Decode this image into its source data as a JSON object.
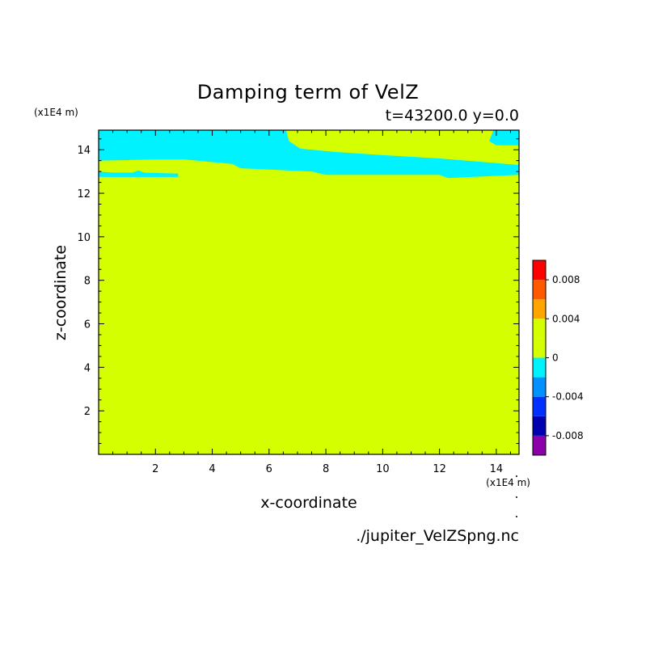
{
  "chart_data": {
    "type": "heatmap",
    "title": "Damping term of VelZ",
    "subtitle": "t=43200.0 y=0.0",
    "xlabel": "x-coordinate",
    "ylabel": "z-coordinate",
    "x_unit": "(x1E4 m)",
    "y_unit": "(x1E4 m)",
    "xlim": [
      0,
      14.8
    ],
    "ylim": [
      0,
      14.9
    ],
    "x_ticks": [
      "2",
      "4",
      "6",
      "8",
      "10",
      "12",
      "14"
    ],
    "y_ticks": [
      "2",
      "4",
      "6",
      "8",
      "10",
      "12",
      "14"
    ],
    "background_level": "0 to 0.002",
    "regions": [
      {
        "name": "band-left",
        "color": "#00f2ff",
        "level": "-0.002 to 0",
        "points": [
          [
            0,
            14.9
          ],
          [
            6.6,
            14.9
          ],
          [
            6.7,
            14.4
          ],
          [
            7.1,
            14.05
          ],
          [
            8.3,
            13.9
          ],
          [
            10.0,
            13.75
          ],
          [
            12.0,
            13.6
          ],
          [
            13.4,
            13.45
          ],
          [
            14.8,
            13.3
          ],
          [
            14.8,
            12.85
          ],
          [
            12.3,
            12.7
          ],
          [
            12.0,
            12.85
          ],
          [
            8.0,
            12.85
          ],
          [
            7.5,
            13.0
          ],
          [
            5.0,
            13.15
          ],
          [
            4.7,
            13.35
          ],
          [
            3.0,
            13.55
          ],
          [
            2.0,
            13.55
          ],
          [
            0,
            13.5
          ]
        ]
      },
      {
        "name": "band-right-corner",
        "color": "#00f2ff",
        "level": "-0.002 to 0",
        "points": [
          [
            13.9,
            14.9
          ],
          [
            14.8,
            14.9
          ],
          [
            14.8,
            14.2
          ],
          [
            14.0,
            14.2
          ],
          [
            13.75,
            14.4
          ],
          [
            13.9,
            14.9
          ]
        ]
      },
      {
        "name": "streak-left",
        "color": "#00f2ff",
        "level": "-0.002 to 0",
        "points": [
          [
            0,
            13.0
          ],
          [
            0.5,
            12.95
          ],
          [
            1.2,
            12.95
          ],
          [
            1.4,
            13.05
          ],
          [
            1.6,
            12.95
          ],
          [
            2.8,
            12.9
          ],
          [
            2.8,
            12.75
          ],
          [
            0,
            12.75
          ]
        ]
      }
    ],
    "colorbar": {
      "levels": [
        -0.01,
        -0.008,
        -0.006,
        -0.004,
        -0.002,
        0,
        0.002,
        0.004,
        0.006,
        0.008,
        0.01
      ],
      "colors": [
        "#8b00a8",
        "#0000b0",
        "#0030ff",
        "#0090ff",
        "#00f2ff",
        "#d4ff00",
        "#d4ff00",
        "#ffa500",
        "#ff5a00",
        "#ff0000",
        "#ffb0b0"
      ],
      "tick_labels": [
        "-0.008",
        "-0.004",
        "0",
        "0.004",
        "0.008"
      ],
      "tick_values": [
        -0.008,
        -0.004,
        0,
        0.004,
        0.008
      ]
    }
  },
  "filename": "./jupiter_VelZSpng.nc"
}
